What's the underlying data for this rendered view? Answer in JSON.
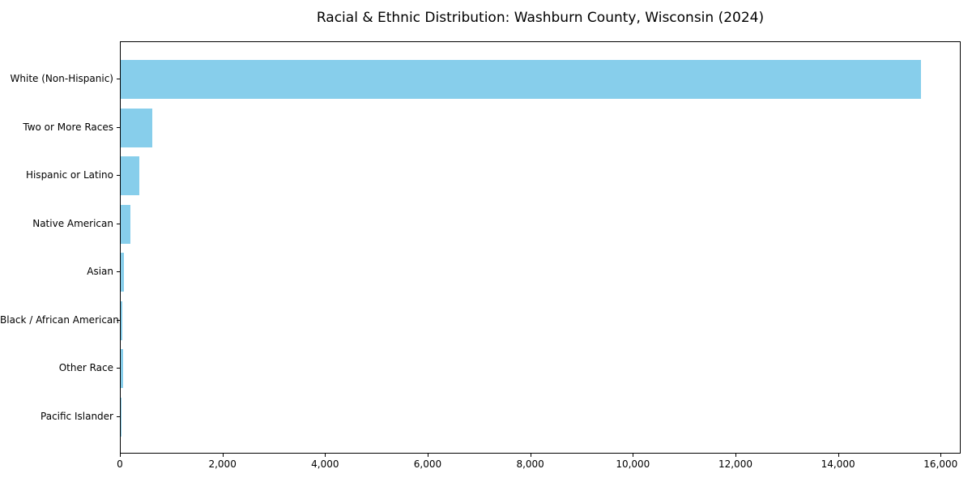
{
  "chart_data": {
    "type": "bar",
    "orientation": "horizontal",
    "title": "Racial & Ethnic Distribution: Washburn County, Wisconsin (2024)",
    "categories": [
      "White (Non-Hispanic)",
      "Two or More Races",
      "Hispanic or Latino",
      "Native American",
      "Asian",
      "Black / African American",
      "Other Race",
      "Pacific Islander"
    ],
    "values": [
      15600,
      610,
      360,
      190,
      70,
      35,
      50,
      4
    ],
    "bar_color": "#87CEEB",
    "xlabel": "",
    "ylabel": "",
    "xlim": [
      0,
      16390
    ],
    "xticks": [
      0,
      2000,
      4000,
      6000,
      8000,
      10000,
      12000,
      14000,
      16000
    ],
    "xtick_labels": [
      "0",
      "2,000",
      "4,000",
      "6,000",
      "8,000",
      "10,000",
      "12,000",
      "14,000",
      "16,000"
    ],
    "grid": false,
    "legend": null,
    "frame_color": "#000000",
    "background_color": "#ffffff"
  }
}
